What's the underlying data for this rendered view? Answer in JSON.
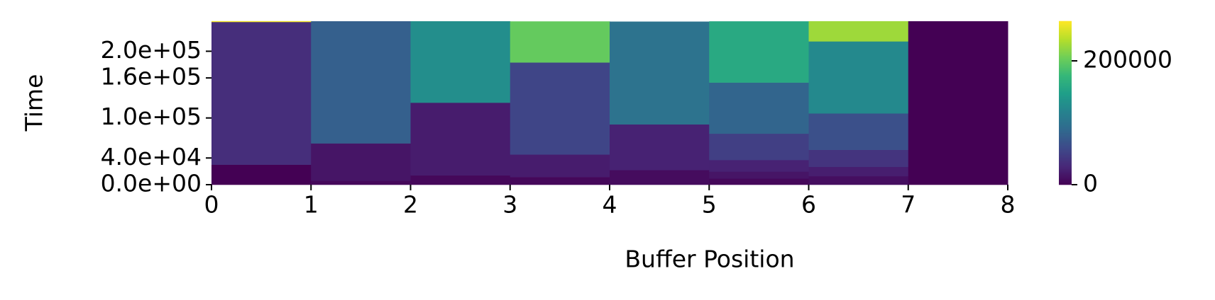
{
  "chart_data": {
    "type": "heatmap",
    "xlabel": "Buffer Position",
    "ylabel": "Time",
    "x": [
      0,
      1,
      2,
      3,
      4,
      5,
      6,
      7
    ],
    "xlim": [
      0,
      8
    ],
    "xticks": [
      0,
      1,
      2,
      3,
      4,
      5,
      6,
      7,
      8
    ],
    "ylim": [
      0,
      245000
    ],
    "yticks": [
      {
        "value": 0,
        "label": "0.0e+00"
      },
      {
        "value": 40000,
        "label": "4.0e+04"
      },
      {
        "value": 100000,
        "label": "1.0e+05"
      },
      {
        "value": 160000,
        "label": "1.6e+05"
      },
      {
        "value": 200000,
        "label": "2.0e+05"
      }
    ],
    "colormap": "viridis",
    "clim": [
      0,
      264000
    ],
    "cticks": [
      0,
      200000
    ],
    "columns": [
      {
        "durations": [
          30000,
          214000,
          1200
        ],
        "values": [
          0,
          35000,
          260000
        ]
      },
      {
        "durations": [
          6000,
          56000,
          183000
        ],
        "values": [
          5000,
          15000,
          80000
        ]
      },
      {
        "durations": [
          14000,
          109000,
          122000
        ],
        "values": [
          5000,
          20000,
          130000
        ]
      },
      {
        "durations": [
          11600,
          33700,
          138000,
          61500
        ],
        "values": [
          5000,
          20000,
          55000,
          200000
        ]
      },
      {
        "durations": [
          22000,
          68500,
          154000
        ],
        "values": [
          8000,
          25000,
          100000
        ]
      },
      {
        "durations": [
          9300,
          10400,
          17400,
          39500,
          76600,
          91700
        ],
        "values": [
          5000,
          15000,
          25000,
          50000,
          85000,
          160000
        ]
      },
      {
        "durations": [
          12800,
          14000,
          25500,
          54600,
          108000,
          30200
        ],
        "values": [
          10000,
          22000,
          40000,
          65000,
          125000,
          225000
        ]
      },
      {
        "durations": [
          245000
        ],
        "values": [
          0
        ]
      }
    ]
  }
}
